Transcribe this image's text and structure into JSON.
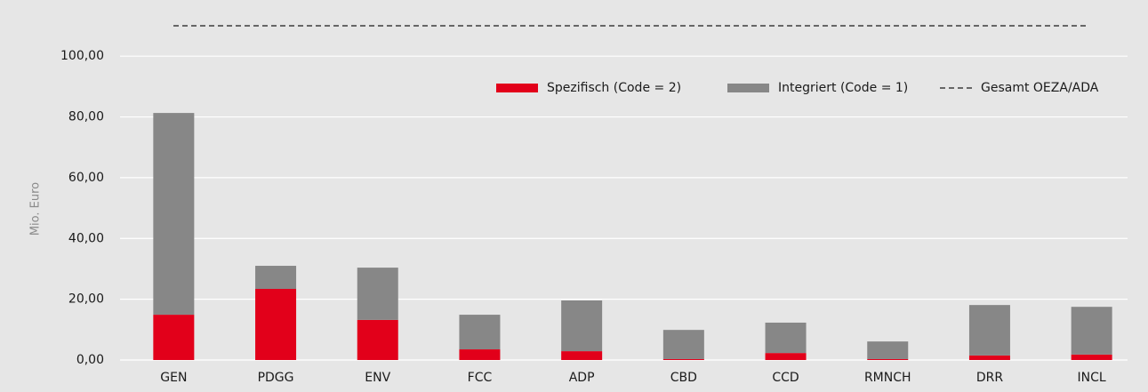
{
  "chart_data": {
    "type": "stacked_bar",
    "y_label": "Mio. Euro",
    "categories": [
      "GEN",
      "PDGG",
      "ENV",
      "FCC",
      "ADP",
      "CBD",
      "CCD",
      "RMNCH",
      "DRR",
      "INCL"
    ],
    "series": [
      {
        "name": "Spezifisch (Code = 2)",
        "color": "#e2001a",
        "values": [
          14.9,
          23.4,
          13.2,
          3.5,
          2.9,
          0.3,
          2.3,
          0.3,
          1.5,
          1.8
        ]
      },
      {
        "name": "Integriert (Code = 1)",
        "color": "#878787",
        "values": [
          66.4,
          7.6,
          17.2,
          11.4,
          16.7,
          9.6,
          10.0,
          5.8,
          16.6,
          15.7
        ]
      }
    ],
    "reference_line": {
      "name": "Gesamt OEZA/ADA",
      "value": 110,
      "color": "#1a1a1a"
    },
    "ylim": [
      0,
      110
    ],
    "yticks": [
      {
        "value": 0,
        "label": "0,00"
      },
      {
        "value": 20,
        "label": "20,00"
      },
      {
        "value": 40,
        "label": "40,00"
      },
      {
        "value": 60,
        "label": "60,00"
      },
      {
        "value": 80,
        "label": "80,00"
      },
      {
        "value": 100,
        "label": "100,00"
      }
    ],
    "grid": true,
    "legend": "upper right"
  }
}
